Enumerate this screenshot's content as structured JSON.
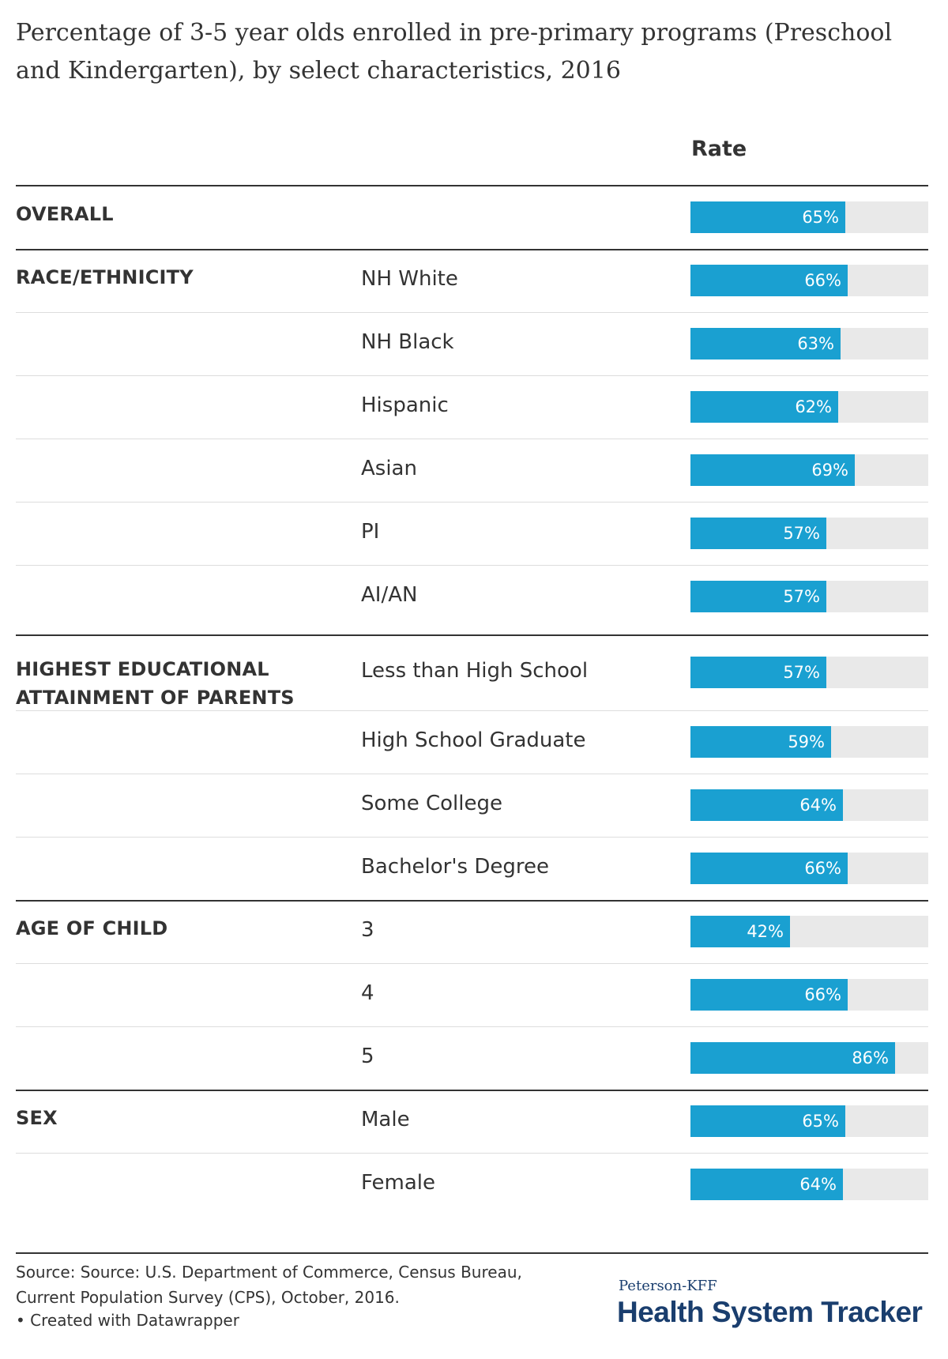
{
  "title": "Percentage of 3-5 year olds enrolled in pre-primary programs (Preschool and Kindergarten), by select characteristics, 2016",
  "column_header": "Rate",
  "chart_data": {
    "type": "bar",
    "title": "Percentage of 3-5 year olds enrolled in pre-primary programs (Preschool and Kindergarten), by select characteristics, 2016",
    "xlabel": "",
    "ylabel": "Rate",
    "ylim": [
      0,
      100
    ],
    "groups": [
      "OVERALL",
      "RACE/ETHNICITY",
      "HIGHEST EDUCATIONAL ATTAINMENT OF PARENTS",
      "AGE OF CHILD",
      "SEX"
    ],
    "rows": [
      {
        "group": "OVERALL",
        "label": "",
        "value": 65,
        "display": "65%"
      },
      {
        "group": "RACE/ETHNICITY",
        "label": "NH White",
        "value": 66,
        "display": "66%"
      },
      {
        "group": "",
        "label": "NH Black",
        "value": 63,
        "display": "63%"
      },
      {
        "group": "",
        "label": "Hispanic",
        "value": 62,
        "display": "62%"
      },
      {
        "group": "",
        "label": "Asian",
        "value": 69,
        "display": "69%"
      },
      {
        "group": "",
        "label": "PI",
        "value": 57,
        "display": "57%"
      },
      {
        "group": "",
        "label": "AI/AN",
        "value": 57,
        "display": "57%"
      },
      {
        "group": "HIGHEST EDUCATIONAL ATTAINMENT OF PARENTS",
        "label": "Less than High School",
        "value": 57,
        "display": "57%"
      },
      {
        "group": "",
        "label": "High School Graduate",
        "value": 59,
        "display": "59%"
      },
      {
        "group": "",
        "label": "Some College",
        "value": 64,
        "display": "64%"
      },
      {
        "group": "",
        "label": "Bachelor's Degree",
        "value": 66,
        "display": "66%"
      },
      {
        "group": "AGE OF CHILD",
        "label": "3",
        "value": 42,
        "display": "42%"
      },
      {
        "group": "",
        "label": "4",
        "value": 66,
        "display": "66%"
      },
      {
        "group": "",
        "label": "5",
        "value": 86,
        "display": "86%"
      },
      {
        "group": "SEX",
        "label": "Male",
        "value": 65,
        "display": "65%"
      },
      {
        "group": "",
        "label": "Female",
        "value": 64,
        "display": "64%"
      }
    ],
    "bar_color": "#1aa0d1",
    "track_color": "#e9e9e9"
  },
  "footer": {
    "source_line1": "Source: Source: U.S. Department of Commerce, Census Bureau,",
    "source_line2": "Current Population Survey (CPS), October, 2016.",
    "credit": "• Created with Datawrapper",
    "logo_small": "Peterson-KFF",
    "logo_big": "Health System Tracker"
  }
}
